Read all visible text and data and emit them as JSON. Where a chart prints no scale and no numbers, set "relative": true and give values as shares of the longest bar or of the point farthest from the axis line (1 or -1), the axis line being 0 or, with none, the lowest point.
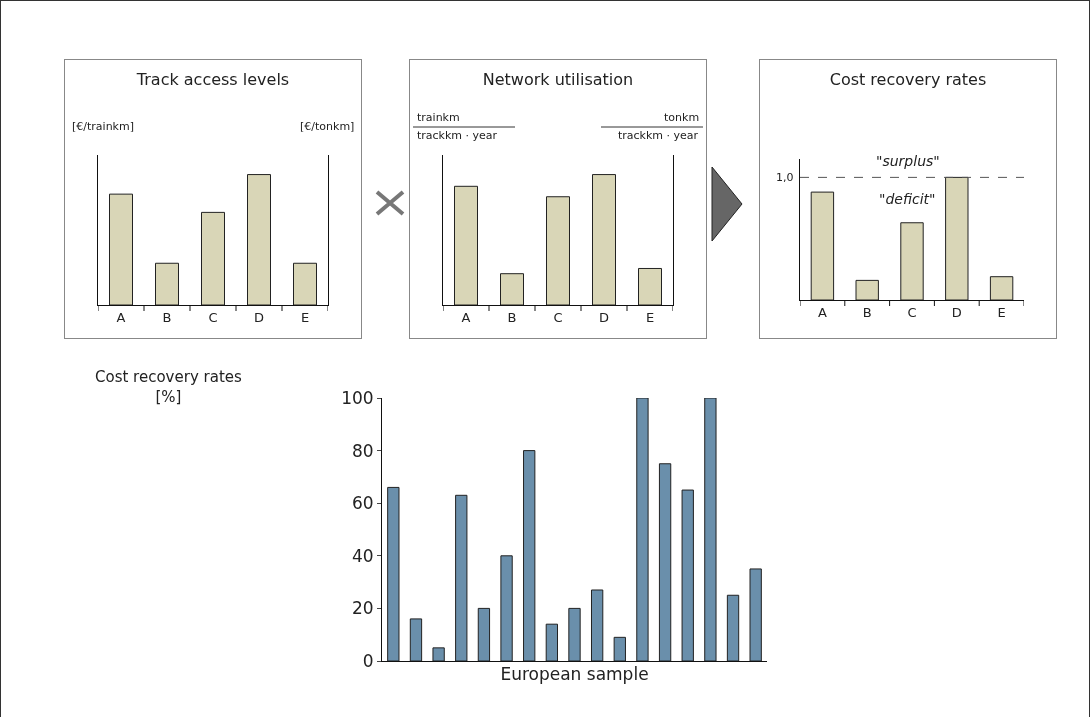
{
  "chart_data": [
    {
      "type": "bar",
      "title": "Track access levels",
      "ylabel": "[€/trainkm]",
      "y2label": "[€/tonkm]",
      "categories": [
        "A",
        "B",
        "C",
        "D",
        "E"
      ],
      "values": [
        0.85,
        0.32,
        0.71,
        1,
        0.32
      ],
      "color": "#d9d6b7",
      "relative": true,
      "grid": false,
      "legend": false
    },
    {
      "type": "bar",
      "title": "Network utilisation",
      "ylabel": "trainkm\ntrackkm · year",
      "y2label": "tonkm\ntrackkm · year",
      "categories": [
        "A",
        "B",
        "C",
        "D",
        "E"
      ],
      "values": [
        0.91,
        0.24,
        0.83,
        1,
        0.28
      ],
      "color": "#d9d6b7",
      "relative": true,
      "grid": false,
      "legend": false
    },
    {
      "type": "bar",
      "title": "Cost recovery rates",
      "categories": [
        "A",
        "B",
        "C",
        "D",
        "E"
      ],
      "values": [
        0.88,
        0.16,
        0.63,
        1,
        0.19
      ],
      "color": "#d9d6b7",
      "relative": true,
      "grid": false,
      "legend": false,
      "ref_lines": [
        {
          "axis": "y",
          "value": 1,
          "label": "1,0",
          "line_style": "dashed",
          "color": "#555555"
        }
      ],
      "annotations": [
        "\"surplus\"",
        "\"deficit\""
      ]
    },
    {
      "type": "bar",
      "ylabel": "Cost recovery rates\n[%]",
      "xlabel": "European sample",
      "categories": [
        null,
        null,
        null,
        null,
        null,
        null,
        null,
        null,
        null,
        null,
        null,
        null,
        null,
        null,
        null,
        null,
        null
      ],
      "values": [
        66,
        16,
        5,
        63,
        20,
        40,
        80,
        14,
        20,
        27,
        9,
        100,
        75,
        65,
        100,
        25,
        35
      ],
      "color": "#6a8fab",
      "ylim": [
        0,
        100
      ],
      "yticks": [
        0,
        20,
        40,
        60,
        80,
        100
      ],
      "grid": false,
      "legend": false
    }
  ]
}
